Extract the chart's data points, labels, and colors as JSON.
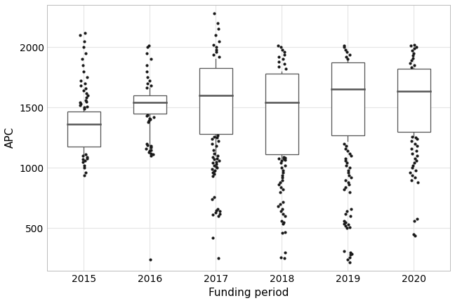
{
  "years": [
    2015,
    2016,
    2017,
    2018,
    2019,
    2020
  ],
  "boxes": [
    {
      "year": 2015,
      "q1": 1175,
      "median": 1360,
      "q3": 1468,
      "whislo": 1100,
      "whishi": 1490,
      "fliers": [
        940,
        960,
        1000,
        1020,
        1050,
        1060,
        1070,
        1080,
        1090,
        1100,
        1110,
        1490,
        1500,
        1510,
        1520,
        1530,
        1540,
        1550,
        1560,
        1580,
        1600,
        1620,
        1640,
        1660,
        1680,
        1700,
        1720,
        1750,
        1800,
        1850,
        1900,
        1950,
        2000,
        2050,
        2100,
        2120
      ]
    },
    {
      "year": 2016,
      "q1": 1448,
      "median": 1542,
      "q3": 1600,
      "whislo": 1120,
      "whishi": 1665,
      "fliers": [
        240,
        1100,
        1110,
        1120,
        1130,
        1140,
        1150,
        1160,
        1170,
        1180,
        1190,
        1200,
        1380,
        1390,
        1400,
        1410,
        1420,
        1430,
        1440,
        1665,
        1680,
        1700,
        1720,
        1750,
        1800,
        1850,
        1900,
        1950,
        2000,
        2010
      ]
    },
    {
      "year": 2017,
      "q1": 1280,
      "median": 1600,
      "q3": 1825,
      "whislo": 1100,
      "whishi": 1900,
      "fliers": [
        255,
        420,
        600,
        610,
        620,
        630,
        640,
        650,
        660,
        740,
        760,
        930,
        950,
        960,
        970,
        980,
        990,
        1000,
        1010,
        1020,
        1030,
        1040,
        1050,
        1060,
        1070,
        1080,
        1090,
        1100,
        1120,
        1150,
        1180,
        1200,
        1220,
        1240,
        1250,
        1260,
        1270,
        1920,
        1940,
        1960,
        1980,
        2000,
        2020,
        2050,
        2100,
        2150,
        2200,
        2280
      ]
    },
    {
      "year": 2018,
      "q1": 1110,
      "median": 1545,
      "q3": 1780,
      "whislo": 1080,
      "whishi": 1800,
      "fliers": [
        250,
        260,
        300,
        460,
        470,
        540,
        550,
        560,
        600,
        620,
        640,
        660,
        680,
        700,
        720,
        800,
        820,
        840,
        860,
        880,
        900,
        920,
        940,
        960,
        980,
        1000,
        1020,
        1040,
        1060,
        1065,
        1070,
        1075,
        1080,
        1085,
        1090,
        1820,
        1840,
        1860,
        1880,
        1900,
        1920,
        1940,
        1960,
        1980,
        2000,
        2010
      ]
    },
    {
      "year": 2019,
      "q1": 1270,
      "median": 1650,
      "q3": 1875,
      "whislo": 1220,
      "whishi": 1890,
      "fliers": [
        220,
        240,
        260,
        280,
        290,
        300,
        310,
        500,
        510,
        520,
        530,
        540,
        550,
        560,
        600,
        620,
        640,
        660,
        800,
        820,
        840,
        860,
        880,
        900,
        920,
        940,
        960,
        980,
        1000,
        1020,
        1040,
        1060,
        1080,
        1100,
        1120,
        1140,
        1160,
        1180,
        1200,
        1900,
        1920,
        1940,
        1960,
        1980,
        2000,
        2010
      ]
    },
    {
      "year": 2020,
      "q1": 1300,
      "median": 1638,
      "q3": 1820,
      "whislo": 1265,
      "whishi": 1825,
      "fliers": [
        440,
        450,
        560,
        580,
        880,
        900,
        920,
        940,
        960,
        980,
        1000,
        1020,
        1040,
        1060,
        1080,
        1100,
        1120,
        1140,
        1160,
        1180,
        1200,
        1220,
        1240,
        1250,
        1260,
        1830,
        1850,
        1870,
        1890,
        1910,
        1930,
        1950,
        1970,
        1990,
        2000,
        2010,
        2020
      ]
    }
  ],
  "xlabel": "Funding period",
  "ylabel": "APC",
  "ylim": [
    150,
    2350
  ],
  "yticks": [
    500,
    1000,
    1500,
    2000
  ],
  "background_color": "#ffffff",
  "grid_color": "#e5e5e5",
  "box_width": 0.5,
  "box_color": "white",
  "median_color": "#555555",
  "whisker_color": "#555555",
  "flier_color": "#1a1a1a",
  "flier_size": 3.0
}
